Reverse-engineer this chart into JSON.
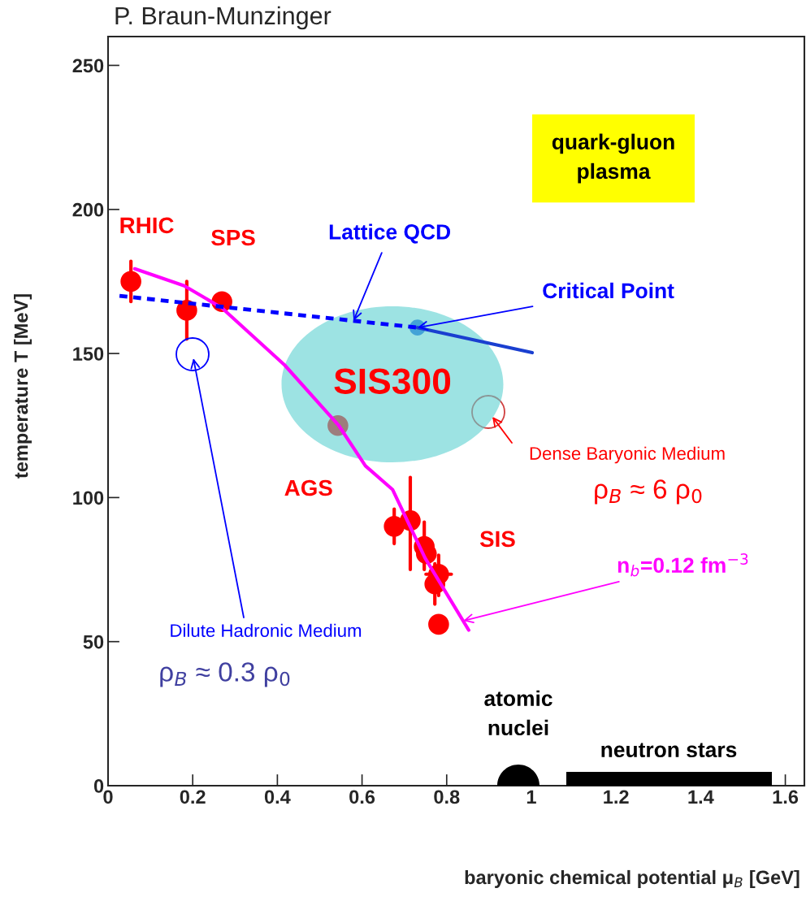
{
  "chart_data": {
    "type": "scatter",
    "title": "P. Braun-Munzinger",
    "xlabel": "baryonic chemical potential μ$_{B}$ [GeV]",
    "ylabel": "temperature T [MeV]",
    "xlim": [
      0,
      1.645
    ],
    "ylim": [
      0,
      260
    ],
    "xticks": [
      0,
      0.2,
      0.4,
      0.6,
      0.8,
      1,
      1.2,
      1.4,
      1.6
    ],
    "yticks": [
      0,
      50,
      100,
      150,
      200,
      250
    ],
    "grid": false,
    "legend": false,
    "series": [
      {
        "color": "#ff0000",
        "marker": "circle",
        "x": [
          0.054,
          0.186,
          0.269,
          0.543,
          0.676,
          0.714,
          0.747,
          0.752,
          0.781,
          0.772,
          0.781
        ],
        "values": [
          175,
          165,
          168,
          125,
          90,
          92,
          83,
          80.5,
          73.4,
          70,
          56
        ],
        "errors": [
          [
            168,
            182
          ],
          [
            155,
            175
          ],
          null,
          null,
          [
            84,
            96
          ],
          [
            75,
            107
          ],
          [
            75,
            91.5
          ],
          null,
          [
            66,
            80
          ],
          [
            63,
            77
          ],
          null
        ],
        "xerrors": [
          null,
          null,
          null,
          null,
          null,
          null,
          null,
          null,
          0.03,
          null,
          null
        ]
      },
      {
        "type": "line",
        "color": "#ff00ff",
        "line_style": "solid",
        "x": [
          0.063,
          0.18,
          0.269,
          0.417,
          0.545,
          0.608,
          0.672,
          0.749,
          0.852
        ],
        "values": [
          179.4,
          173.5,
          165.8,
          146,
          125,
          111,
          102.8,
          79,
          54
        ]
      },
      {
        "type": "line",
        "color": "#0000ff",
        "line_style": "dotted",
        "x": [
          0.027,
          0.731
        ],
        "values": [
          170,
          159
        ]
      },
      {
        "type": "line",
        "color": "#1a3fd0",
        "line_style": "solid",
        "x": [
          0.731,
          1.002
        ],
        "values": [
          159,
          150.3
        ]
      },
      {
        "color": "#2060e0",
        "marker": "circle",
        "x": [
          0.731
        ],
        "values": [
          159
        ]
      }
    ],
    "annotations": [
      {
        "text": "RHIC",
        "x": 0.054,
        "y": 175
      },
      {
        "text": "SPS",
        "x": 0.269,
        "y": 168
      },
      {
        "text": "AGS",
        "x": 0.543,
        "y": 125
      },
      {
        "text": "SIS",
        "x": 0.747,
        "y": 83
      },
      {
        "text": "Lattice QCD",
        "x": 0.58,
        "y": 161.4
      },
      {
        "text": "Critical Point",
        "x": 0.731,
        "y": 159
      },
      {
        "text": "n$_{b}$=0.12 fm$^{−3}$",
        "x": 0.839,
        "y": 57.2
      },
      "Dilute Hadronic Medium",
      "Dense Baryonic Medium",
      "SIS300",
      "atomic\nnuclei",
      "neutron stars",
      "quark-gluon\nplasma",
      "ρ$_{B}$ ≈ 0.3 ρ$_{0}$",
      "ρ$_{B}$ ≈ 6 ρ$_{0}$"
    ]
  }
}
